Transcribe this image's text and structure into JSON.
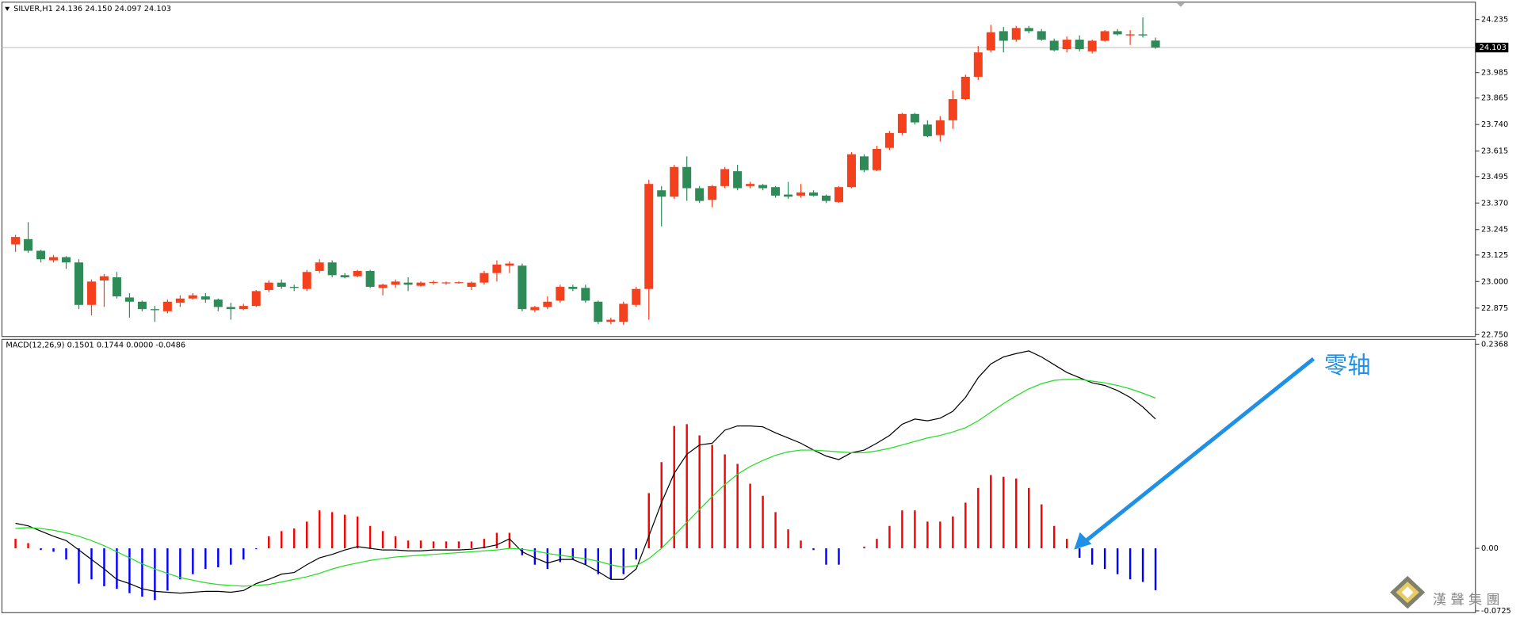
{
  "chart_data": [
    {
      "type": "candlestick",
      "title": "SILVER,H1  24.136 24.150 24.097 24.103",
      "open": [
        23.175,
        23.2,
        23.145,
        23.1,
        23.115,
        23.09,
        22.89,
        23.005,
        23.02,
        22.925,
        22.905,
        22.87,
        22.86,
        22.9,
        22.92,
        22.93,
        22.915,
        22.88,
        22.87,
        22.885,
        22.96,
        22.995,
        22.975,
        22.965,
        23.05,
        23.09,
        23.03,
        23.025,
        23.05,
        22.97,
        22.985,
        22.995,
        22.98,
        22.995,
        22.992,
        22.993,
        22.975,
        22.995,
        23.04,
        23.075,
        23.075,
        22.865,
        22.88,
        22.91,
        22.975,
        22.97,
        22.905,
        22.81,
        22.81,
        22.89,
        22.965,
        23.43,
        23.4,
        23.54,
        23.44,
        23.385,
        23.45,
        23.52,
        23.45,
        23.455,
        23.445,
        23.41,
        23.405,
        23.42,
        23.405,
        23.375,
        23.445,
        23.59,
        23.525,
        23.63,
        23.7,
        23.79,
        23.74,
        23.69,
        23.76,
        23.86,
        23.965,
        24.09,
        24.18,
        24.14,
        24.195,
        24.18,
        24.135,
        24.095,
        24.14,
        24.085,
        24.135,
        24.18,
        24.16,
        24.165,
        24.136
      ],
      "high": [
        23.22,
        23.28,
        23.15,
        23.125,
        23.12,
        23.105,
        23.01,
        23.035,
        23.045,
        22.945,
        22.91,
        22.885,
        22.915,
        22.935,
        22.945,
        22.945,
        22.92,
        22.9,
        22.895,
        22.96,
        23.005,
        23.01,
        22.985,
        23.055,
        23.105,
        23.1,
        23.04,
        23.055,
        23.055,
        22.99,
        23.01,
        23.02,
        23.0,
        23.005,
        23.0,
        23.0,
        23.0,
        23.05,
        23.1,
        23.095,
        23.085,
        22.885,
        22.93,
        22.985,
        22.985,
        22.985,
        22.91,
        22.83,
        22.905,
        22.975,
        23.48,
        23.45,
        23.55,
        23.59,
        23.45,
        23.455,
        23.54,
        23.55,
        23.47,
        23.46,
        23.45,
        23.47,
        23.46,
        23.43,
        23.41,
        23.45,
        23.61,
        23.6,
        23.64,
        23.71,
        23.795,
        23.795,
        23.76,
        23.78,
        23.9,
        23.975,
        24.11,
        24.21,
        24.2,
        24.205,
        24.205,
        24.19,
        24.145,
        24.155,
        24.16,
        24.14,
        24.185,
        24.19,
        24.185,
        24.245,
        24.15
      ],
      "low": [
        23.14,
        23.135,
        23.09,
        23.09,
        23.06,
        22.87,
        22.84,
        22.88,
        22.92,
        22.83,
        22.86,
        22.81,
        22.85,
        22.88,
        22.915,
        22.9,
        22.86,
        22.82,
        22.865,
        22.88,
        22.95,
        22.965,
        22.955,
        22.955,
        23.04,
        23.02,
        23.015,
        23.02,
        22.97,
        22.935,
        22.97,
        22.955,
        22.975,
        22.985,
        22.985,
        22.99,
        22.96,
        22.985,
        23.0,
        23.04,
        22.86,
        22.855,
        22.87,
        22.9,
        22.955,
        22.9,
        22.8,
        22.8,
        22.795,
        22.88,
        22.82,
        23.26,
        23.39,
        23.38,
        23.37,
        23.35,
        23.44,
        23.43,
        23.44,
        23.43,
        23.395,
        23.39,
        23.395,
        23.4,
        23.37,
        23.37,
        23.44,
        23.515,
        23.52,
        23.62,
        23.69,
        23.74,
        23.68,
        23.66,
        23.72,
        23.855,
        23.95,
        24.08,
        24.08,
        24.13,
        24.17,
        24.135,
        24.085,
        24.08,
        24.085,
        24.075,
        24.13,
        24.16,
        24.115,
        24.15,
        24.097
      ],
      "close": [
        23.21,
        23.145,
        23.105,
        23.115,
        23.09,
        22.89,
        23.0,
        23.025,
        22.93,
        22.905,
        22.87,
        22.865,
        22.905,
        22.92,
        22.935,
        22.915,
        22.88,
        22.87,
        22.885,
        22.955,
        22.995,
        22.975,
        22.97,
        23.045,
        23.09,
        23.03,
        23.02,
        23.05,
        22.975,
        22.985,
        23.0,
        22.985,
        22.995,
        22.998,
        22.996,
        22.997,
        22.995,
        23.04,
        23.08,
        23.085,
        22.87,
        22.88,
        22.905,
        22.975,
        22.965,
        22.91,
        22.81,
        22.82,
        22.895,
        22.965,
        23.46,
        23.4,
        23.54,
        23.44,
        23.38,
        23.45,
        23.53,
        23.44,
        23.46,
        23.44,
        23.405,
        23.4,
        23.42,
        23.405,
        23.38,
        23.445,
        23.6,
        23.525,
        23.625,
        23.7,
        23.79,
        23.75,
        23.685,
        23.76,
        23.86,
        23.965,
        24.08,
        24.175,
        24.135,
        24.195,
        24.18,
        24.14,
        24.09,
        24.14,
        24.095,
        24.135,
        24.18,
        24.165,
        24.165,
        24.16,
        24.103
      ],
      "up_color": "#f5401d",
      "down_color": "#2e8b57",
      "current_price": 24.103,
      "ylim": [
        22.741,
        24.317
      ],
      "yticks": [
        24.235,
        23.985,
        23.865,
        {
          "value": 23.74,
          "label": "23.740"
        },
        23.615,
        23.495,
        {
          "value": 23.37,
          "label": "23.370"
        },
        23.245,
        23.125,
        {
          "value": 23,
          "label": "23.000"
        },
        22.875,
        {
          "value": 22.75,
          "label": "22.750"
        }
      ]
    },
    {
      "type": "macd",
      "title": "MACD(12,26,9) 0.1501 0.1744 0.0000 -0.0486",
      "values": [
        0.011,
        0.006,
        -0.002,
        -0.004,
        -0.013,
        -0.041,
        -0.036,
        -0.044,
        -0.047,
        -0.052,
        -0.056,
        -0.06,
        -0.049,
        -0.036,
        -0.03,
        -0.024,
        -0.022,
        -0.019,
        -0.013,
        -0.001,
        0.014,
        0.02,
        0.023,
        0.031,
        0.044,
        0.042,
        0.039,
        0.037,
        0.026,
        0.02,
        0.014,
        0.009,
        0.009,
        0.008,
        0.008,
        0.008,
        0.008,
        0.011,
        0.018,
        0.018,
        -0.008,
        -0.019,
        -0.024,
        -0.016,
        -0.013,
        -0.019,
        -0.03,
        -0.036,
        -0.03,
        -0.013,
        0.064,
        0.1,
        0.142,
        0.144,
        0.131,
        0.12,
        0.109,
        0.098,
        0.075,
        0.061,
        0.042,
        0.022,
        0.009,
        -0.002,
        -0.019,
        -0.019,
        0,
        0.002,
        0.011,
        0.026,
        0.044,
        0.044,
        0.031,
        0.031,
        0.037,
        0.053,
        0.07,
        0.085,
        0.083,
        0.081,
        0.07,
        0.051,
        0.026,
        0.011,
        -0.011,
        -0.019,
        -0.024,
        -0.03,
        -0.036,
        -0.039,
        -0.0486
      ],
      "up_color": "#ff0000",
      "down_color": "#0000ff",
      "lines": [
        {
          "color": "#000000",
          "values": [
            0.029,
            0.026,
            0.02,
            0.014,
            0.009,
            -0.002,
            -0.013,
            -0.024,
            -0.036,
            -0.041,
            -0.047,
            -0.05,
            -0.051,
            -0.052,
            -0.051,
            -0.05,
            -0.05,
            -0.051,
            -0.049,
            -0.041,
            -0.036,
            -0.03,
            -0.028,
            -0.019,
            -0.011,
            -0.007,
            -0.002,
            0.002,
            0,
            -0.002,
            -0.002,
            -0.003,
            -0.003,
            -0.002,
            -0.002,
            -0.002,
            -0.001,
            0.001,
            0.004,
            0.011,
            -0.004,
            -0.011,
            -0.017,
            -0.013,
            -0.013,
            -0.019,
            -0.027,
            -0.036,
            -0.036,
            -0.024,
            0.014,
            0.053,
            0.087,
            0.109,
            0.12,
            0.122,
            0.137,
            0.142,
            0.142,
            0.141,
            0.134,
            0.128,
            0.122,
            0.114,
            0.107,
            0.103,
            0.111,
            0.114,
            0.122,
            0.131,
            0.144,
            0.15,
            0.148,
            0.151,
            0.159,
            0.175,
            0.198,
            0.214,
            0.222,
            0.226,
            0.229,
            0.222,
            0.213,
            0.204,
            0.198,
            0.192,
            0.189,
            0.183,
            0.175,
            0.164,
            0.1501
          ]
        },
        {
          "color": "#22dd22",
          "values": [
            0.023,
            0.024,
            0.023,
            0.021,
            0.018,
            0.014,
            0.009,
            0.003,
            -0.004,
            -0.011,
            -0.018,
            -0.024,
            -0.029,
            -0.034,
            -0.037,
            -0.04,
            -0.042,
            -0.043,
            -0.044,
            -0.043,
            -0.042,
            -0.039,
            -0.036,
            -0.033,
            -0.029,
            -0.024,
            -0.02,
            -0.017,
            -0.014,
            -0.012,
            -0.01,
            -0.009,
            -0.008,
            -0.007,
            -0.006,
            -0.005,
            -0.004,
            -0.003,
            -0.002,
            0,
            -0.001,
            -0.003,
            -0.006,
            -0.008,
            -0.01,
            -0.012,
            -0.015,
            -0.019,
            -0.022,
            -0.02,
            -0.012,
            0,
            0.015,
            0.03,
            0.045,
            0.06,
            0.074,
            0.086,
            0.095,
            0.102,
            0.108,
            0.112,
            0.114,
            0.114,
            0.113,
            0.112,
            0.111,
            0.111,
            0.113,
            0.116,
            0.12,
            0.124,
            0.128,
            0.131,
            0.135,
            0.14,
            0.148,
            0.158,
            0.168,
            0.177,
            0.185,
            0.191,
            0.195,
            0.196,
            0.196,
            0.194,
            0.192,
            0.189,
            0.185,
            0.18,
            0.1744
          ]
        }
      ],
      "annotation": "零轴",
      "ylim": [
        -0.0747,
        0.2424
      ],
      "yticks": [
        0.2368,
        {
          "value": 0,
          "label": "0.00"
        },
        -0.0725
      ]
    }
  ],
  "watermark": "漢 聲 集 團"
}
